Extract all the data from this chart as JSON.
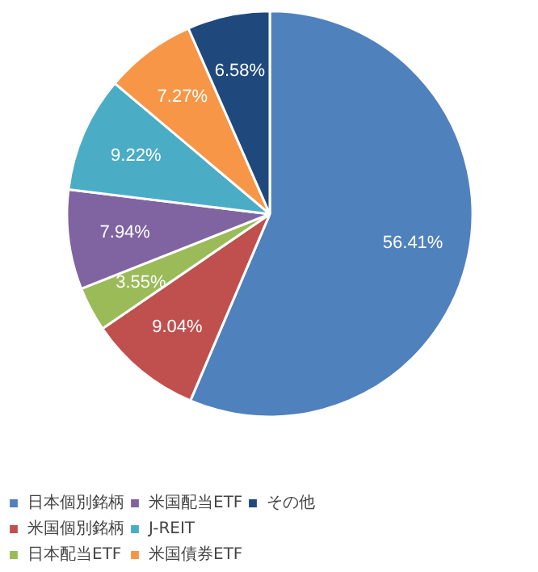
{
  "chart_data": {
    "type": "pie",
    "categories": [
      "日本個別銘柄",
      "米国個別銘柄",
      "日本配当ETF",
      "米国配当ETF",
      "J-REIT",
      "米国債券ETF",
      "その他"
    ],
    "values": [
      56.41,
      9.04,
      3.55,
      7.94,
      9.22,
      7.27,
      6.58
    ],
    "colors": [
      "#4f81bd",
      "#c0504d",
      "#9bbb59",
      "#8064a2",
      "#4bacc6",
      "#f79646",
      "#1f497d"
    ],
    "value_labels": [
      "56.41%",
      "9.04%",
      "3.55%",
      "7.94%",
      "9.22%",
      "7.27%",
      "6.58%"
    ],
    "legend": "bottom"
  }
}
